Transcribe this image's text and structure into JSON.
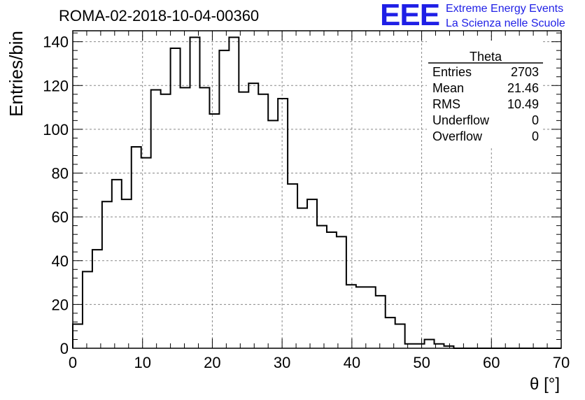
{
  "chart_data": {
    "type": "histogram",
    "title": "ROMA-02-2018-10-04-00360",
    "xlabel": "θ [°]",
    "ylabel": "Entries/bin",
    "xlim": [
      0,
      70
    ],
    "ylim": [
      0,
      145
    ],
    "x_ticks": [
      0,
      10,
      20,
      30,
      40,
      50,
      60,
      70
    ],
    "y_ticks": [
      0,
      20,
      40,
      60,
      80,
      100,
      120,
      140
    ],
    "grid": true,
    "bin_width": 1.4,
    "values": [
      11,
      35,
      45,
      67,
      77,
      68,
      92,
      87,
      118,
      116,
      137,
      119,
      142,
      119,
      107,
      136,
      142,
      117,
      121,
      116,
      104,
      114,
      75,
      64,
      68,
      56,
      53,
      51,
      29,
      28,
      28,
      24,
      14,
      11,
      2,
      2,
      4,
      2,
      1,
      0,
      0,
      0,
      0,
      0,
      0,
      0,
      0,
      0,
      0,
      0
    ]
  },
  "stats": {
    "title": "Theta",
    "rows": [
      {
        "label": "Entries",
        "value": "2703"
      },
      {
        "label": "Mean",
        "value": "21.46"
      },
      {
        "label": "RMS",
        "value": "10.49"
      },
      {
        "label": "Underflow",
        "value": "0"
      },
      {
        "label": "Overflow",
        "value": "0"
      }
    ]
  },
  "logo": {
    "mark": "EEE",
    "line1": "Extreme Energy Events",
    "line2": "La Scienza nelle Scuole",
    "color": "#1f1fe6"
  }
}
